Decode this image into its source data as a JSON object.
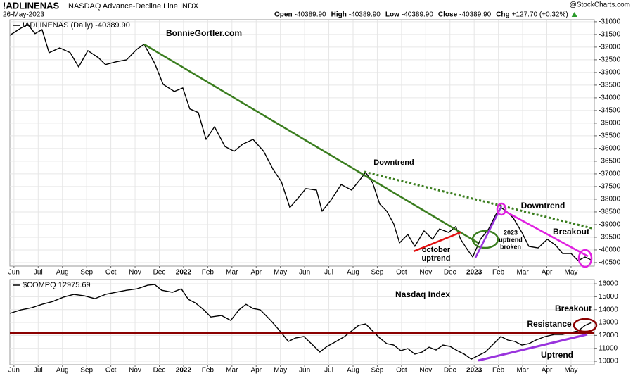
{
  "header": {
    "symbol": "!ADLINENAS",
    "description": "NASDAQ Advance-Decline Line INDX",
    "date": "26-May-2023",
    "quote": [
      {
        "label": "Open",
        "value": "-40389.90"
      },
      {
        "label": "High",
        "value": "-40389.90"
      },
      {
        "label": "Low",
        "value": "-40389.90"
      },
      {
        "label": "Close",
        "value": "-40389.90"
      },
      {
        "label": "Chg",
        "value": "+127.70 (+0.32%)"
      }
    ],
    "source": "@StockCharts.com"
  },
  "chart_data": [
    {
      "type": "line",
      "grid": true,
      "xlim": [
        -0.17,
        23.96
      ],
      "ylim": [
        -40640,
        -30920
      ],
      "xticks": [
        {
          "value": 0,
          "label": "Jun"
        },
        {
          "value": 1,
          "label": "Jul"
        },
        {
          "value": 2,
          "label": "Aug"
        },
        {
          "value": 3,
          "label": "Sep"
        },
        {
          "value": 4,
          "label": "Oct"
        },
        {
          "value": 5,
          "label": "Nov"
        },
        {
          "value": 6,
          "label": "Dec"
        },
        {
          "value": 7,
          "label": "2022"
        },
        {
          "value": 8,
          "label": "Feb"
        },
        {
          "value": 9,
          "label": "Mar"
        },
        {
          "value": 10,
          "label": "Apr"
        },
        {
          "value": 11,
          "label": "May"
        },
        {
          "value": 12,
          "label": "Jun"
        },
        {
          "value": 13,
          "label": "Jul"
        },
        {
          "value": 14,
          "label": "Aug"
        },
        {
          "value": 15,
          "label": "Sep"
        },
        {
          "value": 16,
          "label": "Oct"
        },
        {
          "value": 17,
          "label": "Nov"
        },
        {
          "value": 18,
          "label": "Dec"
        },
        {
          "value": 19,
          "label": "2023"
        },
        {
          "value": 20,
          "label": "Feb"
        },
        {
          "value": 21,
          "label": "Mar"
        },
        {
          "value": 22,
          "label": "Apr"
        },
        {
          "value": 23,
          "label": "May"
        }
      ],
      "yticks": [
        -31000,
        -31500,
        -32000,
        -32500,
        -33000,
        -33500,
        -34000,
        -34500,
        -35000,
        -35500,
        -36000,
        -36500,
        -37000,
        -37500,
        -38000,
        -38500,
        -39000,
        -39500,
        -40000,
        -40500
      ],
      "x": [
        -0.17,
        0.29,
        0.58,
        0.87,
        1.16,
        1.45,
        1.89,
        2.32,
        2.67,
        3.05,
        3.49,
        3.78,
        4.21,
        4.65,
        5.08,
        5.37,
        5.81,
        6.16,
        6.62,
        6.97,
        7.26,
        7.61,
        7.93,
        8.28,
        8.71,
        9.09,
        9.44,
        9.87,
        10.31,
        10.69,
        11.04,
        11.39,
        11.76,
        12.05,
        12.49,
        12.72,
        13.07,
        13.51,
        13.94,
        14.29,
        14.52,
        14.81,
        15.1,
        15.39,
        15.68,
        15.92,
        16.26,
        16.55,
        16.93,
        17.28,
        17.57,
        17.95,
        18.24,
        18.44,
        18.73,
        18.94,
        19.26,
        19.6,
        19.89,
        20.1,
        20.33,
        20.62,
        20.97,
        21.26,
        21.64,
        22.02,
        22.36,
        22.65,
        23.0,
        23.29,
        23.58,
        23.82
      ],
      "series": [
        {
          "name": "!ADLINENAS (Daily) -40389.90",
          "color": "#000000",
          "values": [
            -31530,
            -31250,
            -31110,
            -31470,
            -31310,
            -32220,
            -32030,
            -32220,
            -32780,
            -32140,
            -32420,
            -32690,
            -32580,
            -32500,
            -32080,
            -31890,
            -32640,
            -33470,
            -33750,
            -33610,
            -34440,
            -34580,
            -35640,
            -35140,
            -35920,
            -36110,
            -35830,
            -35640,
            -36110,
            -36810,
            -37310,
            -38330,
            -37920,
            -37580,
            -37640,
            -38470,
            -38060,
            -37420,
            -37640,
            -37220,
            -36940,
            -37360,
            -38190,
            -38470,
            -38970,
            -39720,
            -39390,
            -39860,
            -39250,
            -39580,
            -39170,
            -39310,
            -39080,
            -39580,
            -40000,
            -40280,
            -39580,
            -39170,
            -38610,
            -38330,
            -38470,
            -38750,
            -39310,
            -39860,
            -39920,
            -39580,
            -39810,
            -40140,
            -40140,
            -40420,
            -40280,
            -40389.9
          ]
        }
      ],
      "annotations": [
        {
          "text": [
            "BonnieGortler.com"
          ],
          "color": "#3a7d1e"
        },
        {
          "text": [
            "Downtrend"
          ],
          "color": "#3a7d1e"
        },
        {
          "text": [
            "Downtrend"
          ],
          "color": "#e020e0"
        },
        {
          "text": [
            "Breakout"
          ],
          "color": "#e020e0"
        },
        {
          "text": [
            "october",
            "uptrend"
          ],
          "color": "#e21010"
        },
        {
          "text": [
            "2023",
            "uptrend",
            "broken"
          ],
          "color": "#9933dd"
        }
      ]
    },
    {
      "type": "line",
      "grid": true,
      "xlim": [
        -0.17,
        23.96
      ],
      "ylim": [
        9730,
        16330
      ],
      "xticks": [
        {
          "value": 0,
          "label": "Jun"
        },
        {
          "value": 1,
          "label": "Jul"
        },
        {
          "value": 2,
          "label": "Aug"
        },
        {
          "value": 3,
          "label": "Sep"
        },
        {
          "value": 4,
          "label": "Oct"
        },
        {
          "value": 5,
          "label": "Nov"
        },
        {
          "value": 6,
          "label": "Dec"
        },
        {
          "value": 7,
          "label": "2022"
        },
        {
          "value": 8,
          "label": "Feb"
        },
        {
          "value": 9,
          "label": "Mar"
        },
        {
          "value": 10,
          "label": "Apr"
        },
        {
          "value": 11,
          "label": "May"
        },
        {
          "value": 12,
          "label": "Jun"
        },
        {
          "value": 13,
          "label": "Jul"
        },
        {
          "value": 14,
          "label": "Aug"
        },
        {
          "value": 15,
          "label": "Sep"
        },
        {
          "value": 16,
          "label": "Oct"
        },
        {
          "value": 17,
          "label": "Nov"
        },
        {
          "value": 18,
          "label": "Dec"
        },
        {
          "value": 19,
          "label": "2023"
        },
        {
          "value": 20,
          "label": "Feb"
        },
        {
          "value": 21,
          "label": "Mar"
        },
        {
          "value": 22,
          "label": "Apr"
        },
        {
          "value": 23,
          "label": "May"
        }
      ],
      "yticks": [
        10000,
        11000,
        12000,
        13000,
        14000,
        15000,
        16000
      ],
      "x": [
        -0.17,
        0.29,
        0.73,
        1.16,
        1.6,
        2.03,
        2.47,
        2.9,
        3.34,
        3.78,
        4.21,
        4.65,
        5.08,
        5.52,
        5.81,
        6.1,
        6.54,
        6.91,
        7.2,
        7.49,
        7.84,
        8.13,
        8.57,
        8.95,
        9.29,
        9.58,
        9.87,
        10.17,
        10.6,
        10.98,
        11.33,
        11.62,
        11.97,
        12.34,
        12.63,
        12.92,
        13.3,
        13.65,
        13.94,
        14.23,
        14.52,
        14.81,
        15.1,
        15.39,
        15.68,
        15.97,
        16.26,
        16.55,
        16.85,
        17.14,
        17.43,
        17.71,
        18.01,
        18.3,
        18.59,
        18.88,
        19.17,
        19.46,
        19.75,
        20.1,
        20.39,
        20.68,
        20.97,
        21.26,
        21.55,
        21.93,
        22.31,
        22.65,
        23.0,
        23.29,
        23.58,
        23.82
      ],
      "series": [
        {
          "name": "$COMPQ 12975.69",
          "color": "#000000",
          "values": [
            13710,
            13980,
            14140,
            14410,
            14630,
            14960,
            15180,
            15070,
            14850,
            15180,
            15340,
            15500,
            15610,
            15890,
            15940,
            15500,
            15340,
            15610,
            14800,
            14520,
            13980,
            13430,
            13540,
            13160,
            13980,
            14410,
            14090,
            13980,
            13160,
            12340,
            11530,
            11800,
            11910,
            11250,
            10710,
            11140,
            11530,
            11910,
            12340,
            12780,
            12890,
            12340,
            11800,
            11360,
            11250,
            10820,
            10980,
            10550,
            10710,
            11090,
            10870,
            11250,
            11140,
            10820,
            10550,
            10160,
            10440,
            10710,
            11250,
            11910,
            11640,
            11530,
            11250,
            11360,
            11640,
            11910,
            12070,
            12070,
            12230,
            12340,
            12780,
            12975.69
          ]
        }
      ],
      "annotations": [
        {
          "text": [
            "Nasdaq Index"
          ],
          "color": "#000000"
        },
        {
          "text": [
            "Breakout"
          ],
          "color": "#8b0000"
        },
        {
          "text": [
            "Resistance"
          ],
          "color": "#8b0000"
        },
        {
          "text": [
            "Uptrend"
          ],
          "color": "#9933dd"
        }
      ]
    }
  ]
}
